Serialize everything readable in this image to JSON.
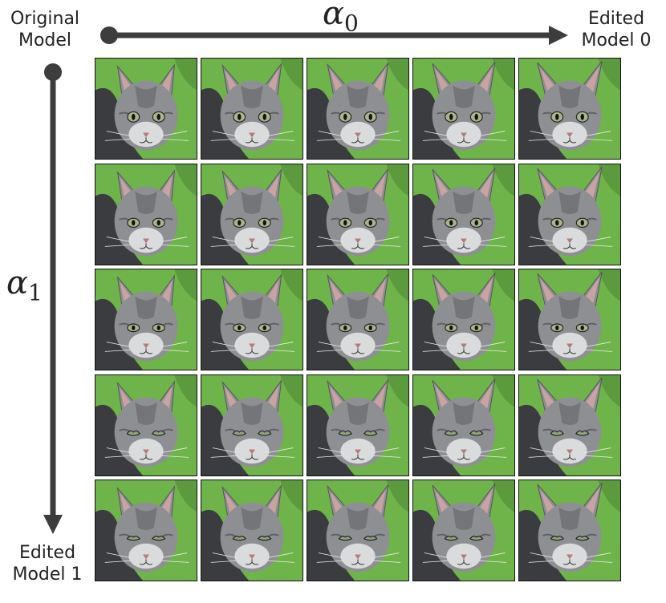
{
  "labels": {
    "top_left": [
      "Original",
      "Model"
    ],
    "top_right": [
      "Edited",
      "Model 0"
    ],
    "bottom_left": [
      "Edited",
      "Model 1"
    ],
    "alpha0": {
      "sym": "α",
      "sub": "0"
    },
    "alpha1": {
      "sym": "α",
      "sub": "1"
    }
  },
  "grid": {
    "rows": 5,
    "cols": 5,
    "tile_content": "cat-face-image"
  },
  "colors": {
    "arrow": "#3d3d3d",
    "grass": "#6fb44a",
    "fur": "#8d8f92"
  }
}
